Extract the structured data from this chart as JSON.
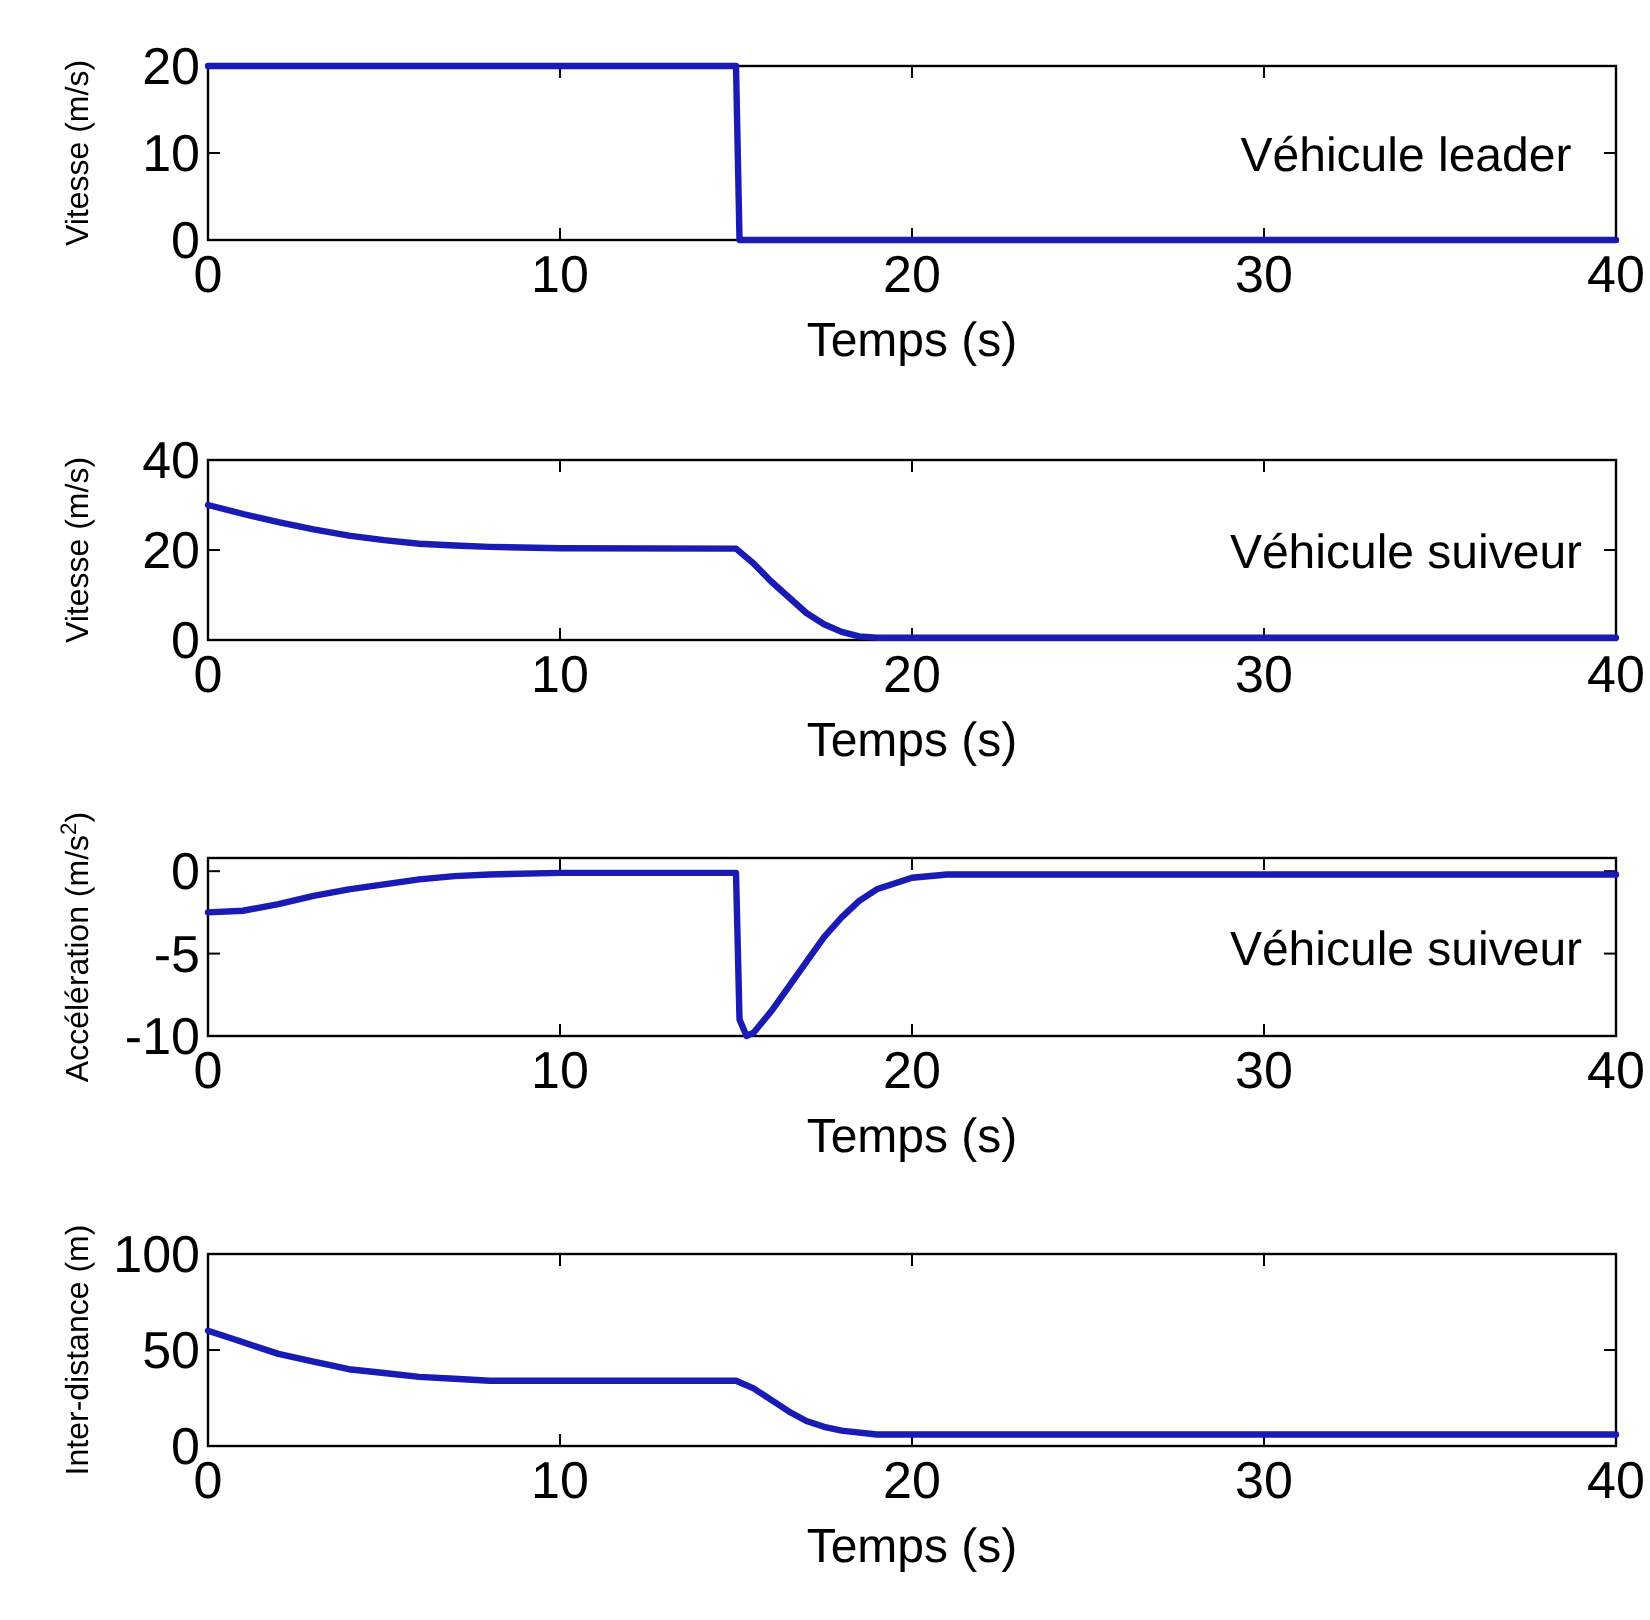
{
  "chart_data": [
    {
      "type": "line",
      "xlabel": "Temps (s)",
      "ylabel": "Vitesse (m/s)",
      "annotations": [
        "Véhicule leader"
      ],
      "xlim": [
        0,
        40
      ],
      "xticks": [
        0,
        10,
        20,
        30,
        40
      ],
      "ylim": [
        0,
        20
      ],
      "yticks": [
        0,
        10,
        20
      ],
      "series": [
        {
          "color": "#1a1ab4",
          "x": [
            0,
            15,
            15.1,
            40
          ],
          "values": [
            20,
            20,
            0,
            0
          ]
        }
      ]
    },
    {
      "type": "line",
      "xlabel": "Temps (s)",
      "ylabel": "Vitesse (m/s)",
      "annotations": [
        "Véhicule suiveur"
      ],
      "xlim": [
        0,
        40
      ],
      "xticks": [
        0,
        10,
        20,
        30,
        40
      ],
      "ylim": [
        0,
        40
      ],
      "yticks": [
        0,
        20,
        40
      ],
      "series": [
        {
          "color": "#1a1ab4",
          "x": [
            0,
            1,
            2,
            3,
            4,
            5,
            6,
            7,
            8,
            10,
            15,
            15.5,
            16,
            16.5,
            17,
            17.5,
            18,
            18.5,
            19,
            40
          ],
          "values": [
            30,
            28,
            26.2,
            24.6,
            23.2,
            22.2,
            21.4,
            21,
            20.7,
            20.4,
            20.3,
            17,
            13,
            9.5,
            6,
            3.5,
            1.8,
            0.8,
            0.5,
            0.5
          ]
        }
      ]
    },
    {
      "type": "line",
      "xlabel": "Temps (s)",
      "ylabel": "Accélération (m/s$^{2}$)",
      "annotations": [
        "Véhicule suiveur"
      ],
      "xlim": [
        0,
        40
      ],
      "xticks": [
        0,
        10,
        20,
        30,
        40
      ],
      "ylim": [
        -10,
        0.8
      ],
      "yticks": [
        -10,
        -5,
        0
      ],
      "series": [
        {
          "color": "#1a1ab4",
          "x": [
            0,
            1,
            2,
            3,
            4,
            5,
            6,
            7,
            8,
            10,
            15,
            15.1,
            15.3,
            15.5,
            16,
            16.5,
            17,
            17.5,
            18,
            18.5,
            19,
            20,
            21,
            40
          ],
          "values": [
            -2.5,
            -2.4,
            -2,
            -1.5,
            -1.1,
            -0.8,
            -0.5,
            -0.3,
            -0.2,
            -0.1,
            -0.1,
            -9,
            -10,
            -9.8,
            -8.5,
            -7,
            -5.5,
            -4,
            -2.8,
            -1.8,
            -1.1,
            -0.4,
            -0.2,
            -0.2
          ]
        }
      ]
    },
    {
      "type": "line",
      "xlabel": "Temps (s)",
      "ylabel": "Inter-distance (m)",
      "xlim": [
        0,
        40
      ],
      "xticks": [
        0,
        10,
        20,
        30,
        40
      ],
      "ylim": [
        0,
        100
      ],
      "yticks": [
        0,
        50,
        100
      ],
      "series": [
        {
          "color": "#1a1ab4",
          "x": [
            0,
            1,
            2,
            3,
            4,
            5,
            6,
            7,
            8,
            10,
            15,
            15.5,
            16,
            16.5,
            17,
            17.5,
            18,
            19,
            20,
            40
          ],
          "values": [
            60,
            54,
            48,
            44,
            40,
            38,
            36,
            35,
            34,
            34,
            34,
            30,
            24,
            18,
            13,
            10,
            8,
            6,
            6,
            6
          ]
        }
      ]
    }
  ]
}
